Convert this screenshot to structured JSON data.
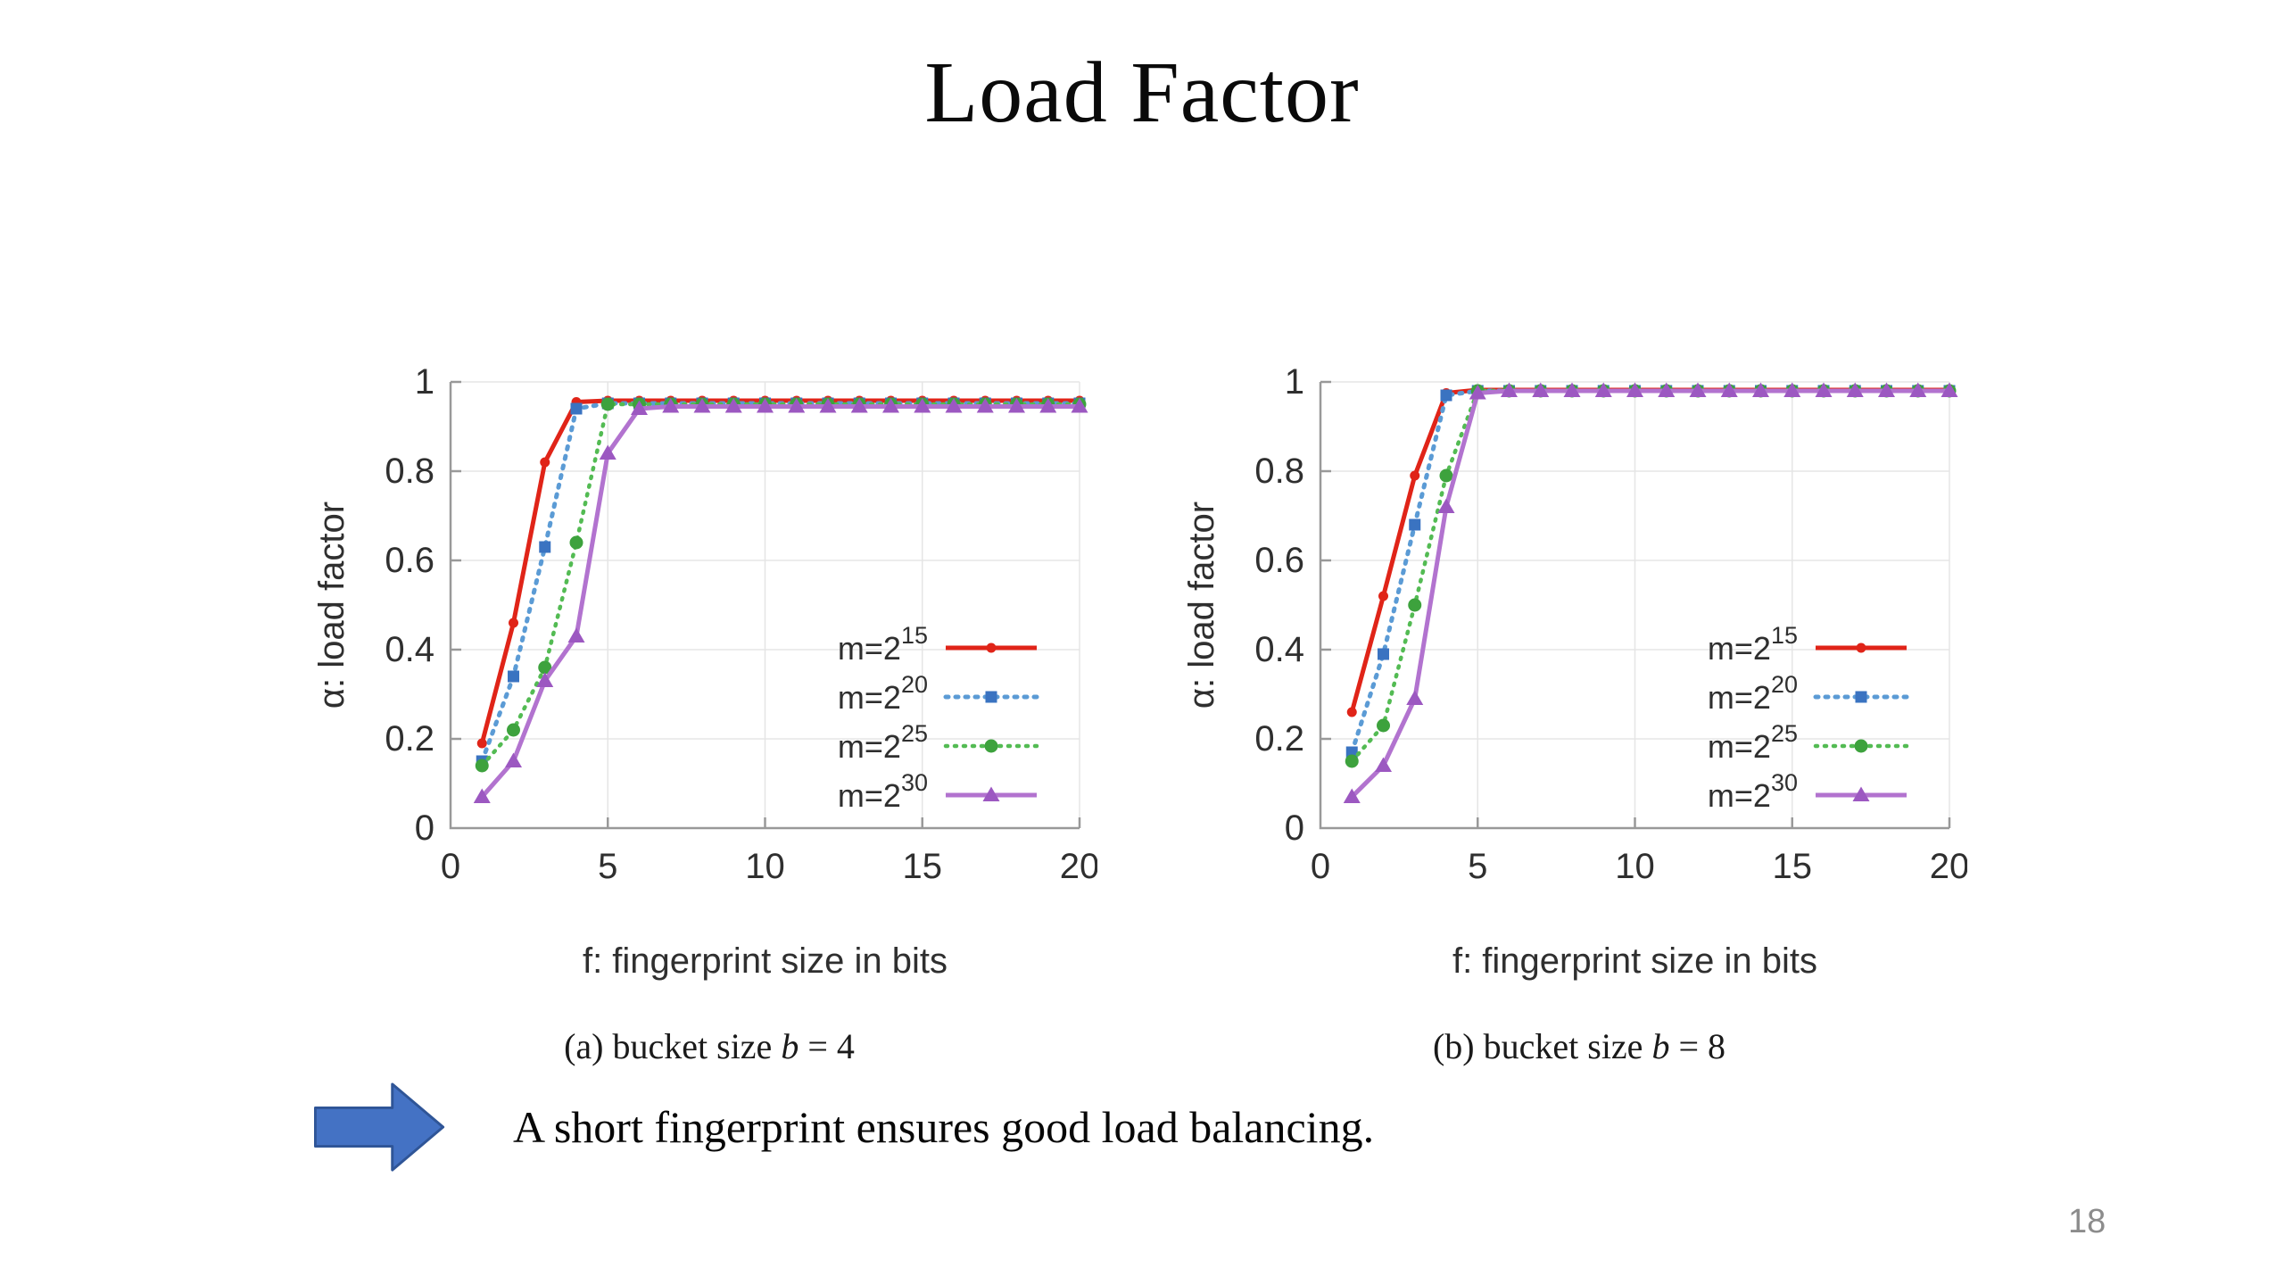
{
  "title": "Load Factor",
  "takeaway": "A short fingerprint ensures good load balancing.",
  "page_number": "18",
  "colors": {
    "arrow_fill": "#4472c4",
    "arrow_border": "#2f5597",
    "axis": "#999999",
    "grid": "#e5e5e5",
    "tick_text": "#2f2f2f",
    "page_number": "#8c8c8c"
  },
  "chart_data": [
    {
      "type": "line",
      "caption": "(a) bucket size b = 4",
      "xlabel": "f: fingerprint size in bits",
      "ylabel": "α: load factor",
      "xlim": [
        0,
        20
      ],
      "ylim": [
        0,
        1
      ],
      "xticks": [
        0,
        5,
        10,
        15,
        20
      ],
      "yticks": [
        0,
        0.2,
        0.4,
        0.6,
        0.8,
        1
      ],
      "grid": true,
      "legend_position": "lower right",
      "x": [
        1,
        2,
        3,
        4,
        5,
        6,
        7,
        8,
        9,
        10,
        11,
        12,
        13,
        14,
        15,
        16,
        17,
        18,
        19,
        20
      ],
      "series": [
        {
          "name": "m=2^15",
          "line_color": "#e02418",
          "marker_color": "#e02418",
          "line": "solid",
          "marker": "dot",
          "values": [
            0.19,
            0.46,
            0.82,
            0.955,
            0.958,
            0.958,
            0.958,
            0.958,
            0.958,
            0.958,
            0.958,
            0.958,
            0.958,
            0.958,
            0.958,
            0.958,
            0.958,
            0.958,
            0.958,
            0.958
          ]
        },
        {
          "name": "m=2^20",
          "line_color": "#5b9bd5",
          "marker_color": "#3a73c1",
          "line": "dashed",
          "marker": "square",
          "values": [
            0.15,
            0.34,
            0.63,
            0.94,
            0.952,
            0.952,
            0.952,
            0.952,
            0.952,
            0.952,
            0.952,
            0.952,
            0.952,
            0.952,
            0.952,
            0.952,
            0.952,
            0.952,
            0.952,
            0.952
          ]
        },
        {
          "name": "m=2^25",
          "line_color": "#53bb53",
          "marker_color": "#3da23d",
          "line": "dotted",
          "marker": "circle",
          "values": [
            0.14,
            0.22,
            0.36,
            0.64,
            0.95,
            0.95,
            0.95,
            0.95,
            0.95,
            0.95,
            0.95,
            0.95,
            0.95,
            0.95,
            0.95,
            0.95,
            0.95,
            0.95,
            0.95,
            0.95
          ]
        },
        {
          "name": "m=2^30",
          "line_color": "#b273cf",
          "marker_color": "#9c58c1",
          "line": "solid",
          "marker": "triangle",
          "values": [
            0.07,
            0.15,
            0.33,
            0.43,
            0.84,
            0.94,
            0.945,
            0.945,
            0.945,
            0.945,
            0.945,
            0.945,
            0.945,
            0.945,
            0.945,
            0.945,
            0.945,
            0.945,
            0.945,
            0.945
          ]
        }
      ]
    },
    {
      "type": "line",
      "caption": "(b) bucket size b = 8",
      "xlabel": "f: fingerprint size in bits",
      "ylabel": "α: load factor",
      "xlim": [
        0,
        20
      ],
      "ylim": [
        0,
        1
      ],
      "xticks": [
        0,
        5,
        10,
        15,
        20
      ],
      "yticks": [
        0,
        0.2,
        0.4,
        0.6,
        0.8,
        1
      ],
      "grid": true,
      "legend_position": "lower right",
      "x": [
        1,
        2,
        3,
        4,
        5,
        6,
        7,
        8,
        9,
        10,
        11,
        12,
        13,
        14,
        15,
        16,
        17,
        18,
        19,
        20
      ],
      "series": [
        {
          "name": "m=2^15",
          "line_color": "#e02418",
          "marker_color": "#e02418",
          "line": "solid",
          "marker": "dot",
          "values": [
            0.26,
            0.52,
            0.79,
            0.975,
            0.982,
            0.982,
            0.982,
            0.982,
            0.982,
            0.982,
            0.982,
            0.982,
            0.982,
            0.982,
            0.982,
            0.982,
            0.982,
            0.982,
            0.982,
            0.982
          ]
        },
        {
          "name": "m=2^20",
          "line_color": "#5b9bd5",
          "marker_color": "#3a73c1",
          "line": "dashed",
          "marker": "square",
          "values": [
            0.17,
            0.39,
            0.68,
            0.97,
            0.98,
            0.98,
            0.98,
            0.98,
            0.98,
            0.98,
            0.98,
            0.98,
            0.98,
            0.98,
            0.98,
            0.98,
            0.98,
            0.98,
            0.98,
            0.98
          ]
        },
        {
          "name": "m=2^25",
          "line_color": "#53bb53",
          "marker_color": "#3da23d",
          "line": "dotted",
          "marker": "circle",
          "values": [
            0.15,
            0.23,
            0.5,
            0.79,
            0.98,
            0.98,
            0.98,
            0.98,
            0.98,
            0.98,
            0.98,
            0.98,
            0.98,
            0.98,
            0.98,
            0.98,
            0.98,
            0.98,
            0.98,
            0.98
          ]
        },
        {
          "name": "m=2^30",
          "line_color": "#b273cf",
          "marker_color": "#9c58c1",
          "line": "solid",
          "marker": "triangle",
          "values": [
            0.07,
            0.14,
            0.29,
            0.72,
            0.975,
            0.98,
            0.98,
            0.98,
            0.98,
            0.98,
            0.98,
            0.98,
            0.98,
            0.98,
            0.98,
            0.98,
            0.98,
            0.98,
            0.98,
            0.98
          ]
        }
      ]
    }
  ]
}
